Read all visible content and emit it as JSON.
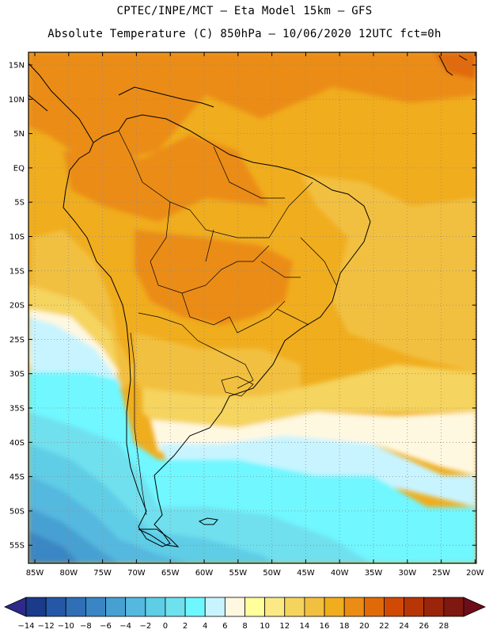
{
  "title": {
    "line1": "CPTEC/INPE/MCT –  Eta Model 15km – GFS",
    "line2": "Absolute Temperature (C) 850hPa – 10/06/2020 12UTC fct=0h"
  },
  "map": {
    "lat_labels": [
      "15N",
      "10N",
      "5N",
      "EQ",
      "5S",
      "10S",
      "15S",
      "20S",
      "25S",
      "30S",
      "35S",
      "40S",
      "45S",
      "50S",
      "55S"
    ],
    "lon_labels": [
      "85W",
      "80W",
      "75W",
      "70W",
      "65W",
      "60W",
      "55W",
      "50W",
      "45W",
      "40W",
      "35W",
      "30W",
      "25W",
      "20W"
    ]
  },
  "colorbar": {
    "labels": [
      "-14",
      "-12",
      "-10",
      "-8",
      "-6",
      "-4",
      "-2",
      "0",
      "2",
      "4",
      "6",
      "8",
      "10",
      "12",
      "14",
      "16",
      "18",
      "20",
      "22",
      "24",
      "26",
      "28"
    ],
    "colors": [
      "#1a3a8a",
      "#2458a6",
      "#2f6fb6",
      "#3a86c4",
      "#47a0d2",
      "#55b8df",
      "#5ecde6",
      "#6fe0ee",
      "#6ff7ff",
      "#c8f4ff",
      "#fff8e1",
      "#ffff9c",
      "#fbe986",
      "#f5d45e",
      "#f2c041",
      "#f0ad1e",
      "#eb8c14",
      "#e06a0a",
      "#d04a06",
      "#b63606",
      "#9a250a",
      "#7e1810"
    ],
    "left_arrow_color": "#2d2a8a",
    "right_arrow_color": "#6d0d18"
  }
}
